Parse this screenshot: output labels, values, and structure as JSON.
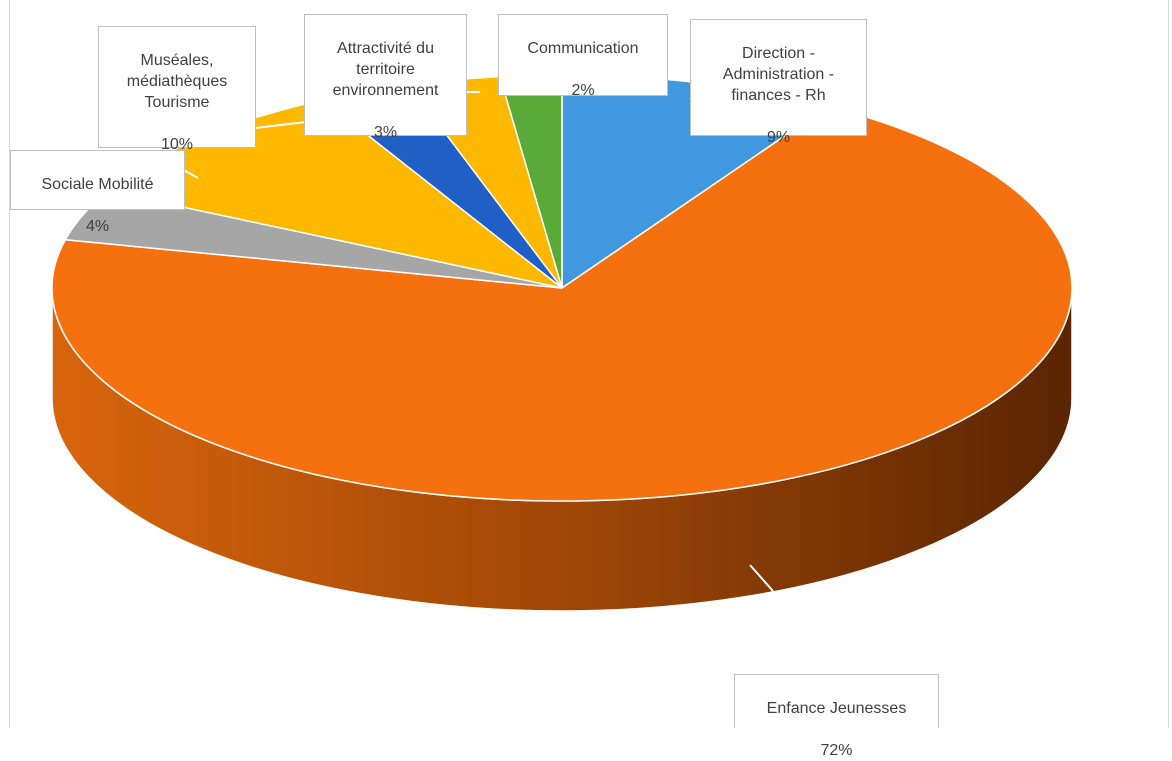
{
  "chart_data": {
    "type": "pie",
    "title": "",
    "categories": [
      "Direction - Administration - finances - Rh",
      "Enfance Jeunesses",
      "Sociale Mobilité",
      "Muséales, médiathèques Tourisme",
      "Attractivité du territoire environnement",
      "",
      "Communication"
    ],
    "values": [
      9,
      72,
      4,
      10,
      3,
      3,
      2
    ],
    "labels": [
      {
        "name": "Direction -\nAdministration -\nfinances - Rh",
        "value_text": "9%"
      },
      {
        "name": "Enfance Jeunesses",
        "value_text": "72%"
      },
      {
        "name": "Sociale Mobilité",
        "value_text": "4%"
      },
      {
        "name": "Muséales,\nmédiathèques\nTourisme",
        "value_text": "10%"
      },
      {
        "name": "Attractivité du\nterritoire\nenvironnement",
        "value_text": "3%"
      },
      {
        "name": "",
        "value_text": ""
      },
      {
        "name": "Communication",
        "value_text": "2%"
      }
    ],
    "colors": [
      "#4298de",
      "#f5700f",
      "#a6a6a6",
      "#ffb800",
      "#1f5fc6",
      "#ffb800",
      "#5aaa3a"
    ],
    "side_colors": [
      "#2a6ea8",
      "#8a3a05",
      "#777777",
      "#b07e00",
      "#163f85",
      "#b07e00",
      "#3c7a26"
    ],
    "style": "3d-pie",
    "legend": "none"
  }
}
